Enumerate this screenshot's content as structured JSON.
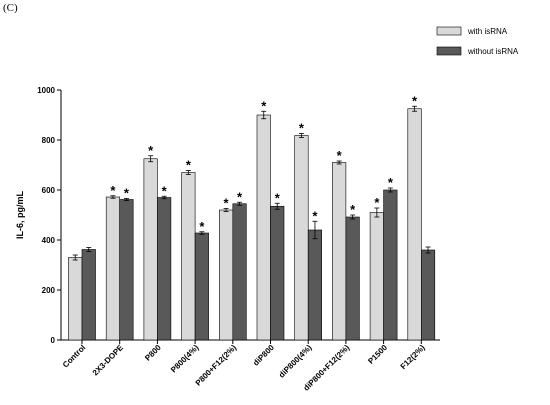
{
  "panel_label": "(C)",
  "chart_data": {
    "type": "bar",
    "title": "",
    "xlabel": "",
    "ylabel": "IL-6, pg/mL",
    "ylim": [
      0,
      1000
    ],
    "yticks": [
      0,
      200,
      400,
      600,
      800,
      1000
    ],
    "grid": false,
    "legend_position": "top-right",
    "categories": [
      "Control",
      "2X3-DOPE",
      "P800",
      "P800(4%)",
      "P800+F12(2%)",
      "diP800",
      "diP800(4%)",
      "diP800+F12(2%)",
      "P1500",
      "F12(2%)"
    ],
    "series": [
      {
        "name": "with isRNA",
        "color": "#d9d9d9",
        "values": [
          330,
          572,
          725,
          670,
          520,
          900,
          818,
          710,
          510,
          925
        ],
        "errors": [
          10,
          5,
          12,
          8,
          6,
          15,
          8,
          6,
          18,
          10
        ],
        "significant": [
          false,
          true,
          true,
          true,
          true,
          true,
          true,
          true,
          true,
          true
        ]
      },
      {
        "name": "without isRNA",
        "color": "#595959",
        "values": [
          362,
          562,
          570,
          428,
          545,
          535,
          440,
          492,
          600,
          360
        ],
        "errors": [
          8,
          4,
          5,
          5,
          6,
          12,
          35,
          8,
          8,
          12
        ],
        "significant": [
          false,
          true,
          true,
          true,
          true,
          true,
          true,
          true,
          true,
          false
        ]
      }
    ],
    "annotation_symbol": "*"
  }
}
